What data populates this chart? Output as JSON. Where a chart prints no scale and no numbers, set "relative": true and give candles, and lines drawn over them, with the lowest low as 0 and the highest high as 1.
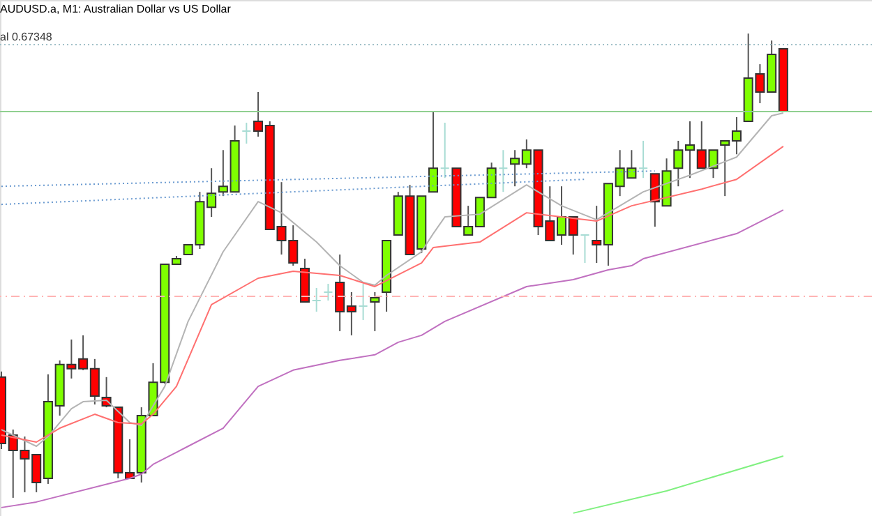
{
  "chart_data": {
    "type": "candlestick",
    "relative": true,
    "title": "AUDUSD.a, M1:  Australian Dollar vs US Dollar",
    "categories": [
      null,
      null,
      null,
      null,
      null,
      null,
      null,
      null,
      null,
      null,
      null,
      null,
      null,
      null,
      null,
      null,
      null,
      null,
      null,
      null,
      null,
      null,
      null,
      null,
      null,
      null,
      null,
      null,
      null,
      null,
      null,
      null,
      null,
      null,
      null,
      null,
      null,
      null,
      null,
      null,
      null,
      null,
      null,
      null,
      null,
      null,
      null,
      null,
      null,
      null,
      null,
      null,
      null,
      null,
      null,
      null,
      null,
      null,
      null,
      null,
      null,
      null,
      null,
      null,
      null,
      null,
      null,
      null
    ],
    "ohlc": [
      [
        0.26,
        0.272,
        0.105,
        0.117
      ],
      [
        0.135,
        0.147,
        0,
        0.102
      ],
      [
        0.102,
        0.132,
        0.012,
        0.084
      ],
      [
        0.093,
        0.093,
        0.012,
        0.033
      ],
      [
        0.042,
        0.266,
        0.03,
        0.207
      ],
      [
        0.198,
        0.296,
        0.177,
        0.287
      ],
      [
        0.287,
        0.341,
        0.257,
        0.278
      ],
      [
        0.299,
        0.35,
        0.275,
        0.278
      ],
      [
        0.278,
        0.299,
        0.201,
        0.219
      ],
      [
        0.216,
        0.26,
        0.195,
        0.198
      ],
      [
        0.195,
        0.195,
        0.042,
        0.054
      ],
      [
        0.054,
        0.126,
        0.042,
        0.042
      ],
      [
        0.054,
        0.195,
        0.033,
        0.177
      ],
      [
        0.177,
        0.29,
        0.177,
        0.249
      ],
      [
        0.249,
        0.503,
        0.246,
        0.503
      ],
      [
        0.503,
        0.521,
        0.503,
        0.515
      ],
      [
        0.524,
        0.545,
        0.524,
        0.545
      ],
      [
        0.545,
        0.659,
        0.536,
        0.638
      ],
      [
        0.626,
        0.71,
        0.605,
        0.656
      ],
      [
        0.659,
        0.749,
        0.65,
        0.671
      ],
      [
        0.659,
        0.802,
        0.659,
        0.769
      ],
      [
        0.79,
        0.808,
        0.763,
        0.79
      ],
      [
        0.811,
        0.874,
        0.778,
        0.79
      ],
      [
        0.802,
        0.811,
        0.578,
        0.578
      ],
      [
        0.584,
        0.68,
        0.524,
        0.554
      ],
      [
        0.554,
        0.587,
        0.5,
        0.506
      ],
      [
        0.494,
        0.515,
        0.422,
        0.422
      ],
      [
        0.425,
        0.452,
        0.401,
        0.425
      ],
      [
        0.443,
        0.461,
        0.425,
        0.443
      ],
      [
        0.464,
        0.524,
        0.359,
        0.401
      ],
      [
        0.413,
        0.443,
        0.35,
        0.401
      ],
      [
        0.413,
        0.461,
        0.383,
        0.413
      ],
      [
        0.422,
        0.443,
        0.359,
        0.431
      ],
      [
        0.443,
        0.554,
        0.401,
        0.554
      ],
      [
        0.566,
        0.659,
        0.566,
        0.65
      ],
      [
        0.65,
        0.674,
        0.524,
        0.524
      ],
      [
        0.536,
        0.65,
        0.527,
        0.65
      ],
      [
        0.659,
        0.832,
        0.659,
        0.71
      ],
      [
        0.71,
        0.808,
        0.689,
        0.71
      ],
      [
        0.71,
        0.71,
        0.584,
        0.584
      ],
      [
        0.566,
        0.629,
        0.566,
        0.584
      ],
      [
        0.584,
        0.647,
        0.584,
        0.647
      ],
      [
        0.647,
        0.722,
        0.647,
        0.71
      ],
      [
        0.71,
        0.749,
        0.659,
        0.71
      ],
      [
        0.719,
        0.749,
        0.671,
        0.731
      ],
      [
        0.719,
        0.772,
        0.71,
        0.749
      ],
      [
        0.749,
        0.749,
        0.566,
        0.584
      ],
      [
        0.596,
        0.671,
        0.554,
        0.554
      ],
      [
        0.566,
        0.671,
        0.545,
        0.605
      ],
      [
        0.605,
        0.605,
        0.524,
        0.566
      ],
      [
        0.566,
        0.566,
        0.506,
        0.566
      ],
      [
        0.554,
        0.629,
        0.506,
        0.545
      ],
      [
        0.545,
        0.677,
        0.5,
        0.677
      ],
      [
        0.671,
        0.749,
        0.65,
        0.71
      ],
      [
        0.689,
        0.749,
        0.689,
        0.71
      ],
      [
        0.71,
        0.769,
        0.689,
        0.71
      ],
      [
        0.698,
        0.698,
        0.584,
        0.638
      ],
      [
        0.629,
        0.731,
        0.629,
        0.704
      ],
      [
        0.71,
        0.769,
        0.671,
        0.749
      ],
      [
        0.749,
        0.811,
        0.689,
        0.76
      ],
      [
        0.749,
        0.811,
        0.71,
        0.71
      ],
      [
        0.71,
        0.749,
        0.689,
        0.749
      ],
      [
        0.76,
        0.769,
        0.65,
        0.769
      ],
      [
        0.769,
        0.82,
        0.74,
        0.79
      ],
      [
        0.811,
        1,
        0.811,
        0.904
      ],
      [
        0.913,
        0.934,
        0.85,
        0.874
      ],
      [
        0.874,
        0.985,
        0.874,
        0.955
      ],
      [
        0.967,
        0.967,
        0.832,
        0.832
      ]
    ],
    "colors": [
      "#ff0000",
      "#ff0000",
      "#ff0000",
      "#ff0000",
      "#7fff00",
      "#7fff00",
      "#ff0000",
      "#ff0000",
      "#ff0000",
      "#ff0000",
      "#ff0000",
      "#ff0000",
      "#7fff00",
      "#7fff00",
      "#7fff00",
      "#7fff00",
      "#7fff00",
      "#7fff00",
      "#7fff00",
      "#7fff00",
      "#7fff00",
      "#a8dcd4",
      "#ff0000",
      "#ff0000",
      "#ff0000",
      "#ff0000",
      "#ff0000",
      "#a8dcd4",
      "#a8dcd4",
      "#ff0000",
      "#ff0000",
      "#a8dcd4",
      "#7fff00",
      "#7fff00",
      "#7fff00",
      "#ff0000",
      "#7fff00",
      "#7fff00",
      "#a8dcd4",
      "#ff0000",
      "#7fff00",
      "#7fff00",
      "#7fff00",
      "#a8dcd4",
      "#7fff00",
      "#7fff00",
      "#ff0000",
      "#ff0000",
      "#7fff00",
      "#ff0000",
      "#a8dcd4",
      "#ff0000",
      "#7fff00",
      "#7fff00",
      "#7fff00",
      "#a8dcd4",
      "#ff0000",
      "#7fff00",
      "#7fff00",
      "#7fff00",
      "#ff0000",
      "#7fff00",
      "#7fff00",
      "#7fff00",
      "#7fff00",
      "#ff0000",
      "#7fff00",
      "#ff0000"
    ],
    "series": [
      {
        "type": "line",
        "color": "#b4b4b4",
        "line_style": "solid",
        "values": [
          0.147,
          null,
          null,
          0.111,
          0.132,
          null,
          0.192,
          0.207,
          null,
          0.21,
          null,
          0.162,
          0.156,
          null,
          0.24,
          null,
          0.38,
          null,
          null,
          0.53,
          null,
          null,
          0.638,
          null,
          0.614,
          null,
          null,
          0.551,
          null,
          0.5,
          null,
          0.464,
          0.458,
          0.479,
          null,
          null,
          0.53,
          0.569,
          0.605,
          null,
          null,
          0.611,
          null,
          null,
          null,
          0.674,
          null,
          null,
          0.629,
          null,
          null,
          0.599,
          null,
          null,
          null,
          0.659,
          null,
          null,
          null,
          0.695,
          null,
          null,
          null,
          0.734,
          null,
          null,
          0.823,
          0.829
        ]
      },
      {
        "type": "line",
        "color": "#ff7070",
        "line_style": "solid",
        "values": [
          0.135,
          null,
          null,
          0.12,
          null,
          0.15,
          null,
          null,
          0.18,
          null,
          0.162,
          null,
          0.159,
          0.18,
          null,
          0.24,
          null,
          null,
          0.416,
          null,
          null,
          null,
          0.473,
          null,
          null,
          0.488,
          null,
          null,
          null,
          0.479,
          null,
          null,
          0.455,
          null,
          null,
          null,
          0.506,
          0.539,
          null,
          null,
          null,
          0.551,
          null,
          null,
          null,
          0.614,
          null,
          null,
          null,
          null,
          null,
          0.596,
          null,
          null,
          0.629,
          null,
          null,
          null,
          null,
          null,
          0.665,
          null,
          null,
          0.686,
          null,
          null,
          null,
          0.757
        ]
      },
      {
        "type": "line",
        "color": "#c070c0",
        "line_style": "solid",
        "values": [
          -0.021,
          null,
          null,
          -0.009,
          null,
          null,
          null,
          null,
          null,
          null,
          null,
          0.042,
          0.051,
          0.072,
          null,
          null,
          0.111,
          null,
          null,
          0.15,
          null,
          null,
          0.24,
          null,
          null,
          0.275,
          null,
          null,
          null,
          0.296,
          null,
          null,
          0.308,
          null,
          0.335,
          null,
          0.35,
          null,
          0.38,
          null,
          null,
          null,
          null,
          null,
          null,
          0.455,
          null,
          null,
          null,
          0.47,
          null,
          null,
          0.491,
          null,
          0.5,
          0.515,
          null,
          null,
          null,
          null,
          null,
          null,
          null,
          0.569,
          null,
          null,
          null,
          0.62
        ]
      },
      {
        "type": "line",
        "color": "#80f080",
        "line_style": "solid",
        "values": [
          null,
          null,
          null,
          null,
          null,
          null,
          null,
          null,
          null,
          null,
          null,
          null,
          null,
          null,
          null,
          null,
          null,
          null,
          null,
          null,
          null,
          null,
          null,
          null,
          null,
          null,
          null,
          null,
          null,
          null,
          null,
          null,
          null,
          null,
          null,
          null,
          null,
          null,
          null,
          null,
          null,
          null,
          null,
          null,
          null,
          null,
          null,
          null,
          null,
          -0.033,
          null,
          null,
          null,
          null,
          null,
          null,
          null,
          0.015,
          null,
          null,
          null,
          null,
          null,
          null,
          null,
          null,
          null,
          0.09
        ]
      },
      {
        "type": "line",
        "color": "#6a9ad0",
        "line_style": "dotted",
        "values": [
          0.671,
          null,
          null,
          null,
          null,
          null,
          null,
          null,
          null,
          null,
          null,
          null,
          null,
          null,
          null,
          null,
          null,
          null,
          null,
          null,
          null,
          null,
          null,
          null,
          null,
          null,
          null,
          null,
          null,
          null,
          null,
          null,
          null,
          null,
          null,
          null,
          null,
          null,
          null,
          null,
          null,
          null,
          null,
          null,
          null,
          null,
          null,
          null,
          null,
          null,
          null,
          null,
          null,
          null,
          null,
          null,
          0.704,
          null,
          null,
          null,
          null,
          null,
          null,
          null,
          null,
          null,
          null,
          null
        ]
      },
      {
        "type": "line",
        "color": "#6a9ad0",
        "line_style": "dotted",
        "values": [
          0.632,
          null,
          null,
          null,
          null,
          null,
          null,
          null,
          null,
          null,
          null,
          null,
          null,
          null,
          null,
          null,
          null,
          null,
          null,
          null,
          null,
          null,
          null,
          null,
          null,
          null,
          null,
          null,
          null,
          null,
          null,
          null,
          null,
          null,
          null,
          null,
          null,
          null,
          null,
          null,
          null,
          null,
          null,
          null,
          null,
          null,
          null,
          null,
          null,
          null,
          0.686,
          null,
          null,
          null,
          null,
          null,
          null,
          null,
          null,
          null,
          null,
          null,
          null,
          null,
          null,
          null,
          null,
          null
        ]
      }
    ],
    "ref_lines": [
      {
        "axis": "y",
        "value": 0.976,
        "label": "al 0.67348",
        "color": "#a0c0c8",
        "line_style": "dotted"
      },
      {
        "axis": "y",
        "value": 0.832,
        "color": "#90d090",
        "line_style": "solid"
      },
      {
        "axis": "y",
        "value": 0.434,
        "color": "#ffb4b4",
        "line_style": "dashed"
      }
    ]
  }
}
